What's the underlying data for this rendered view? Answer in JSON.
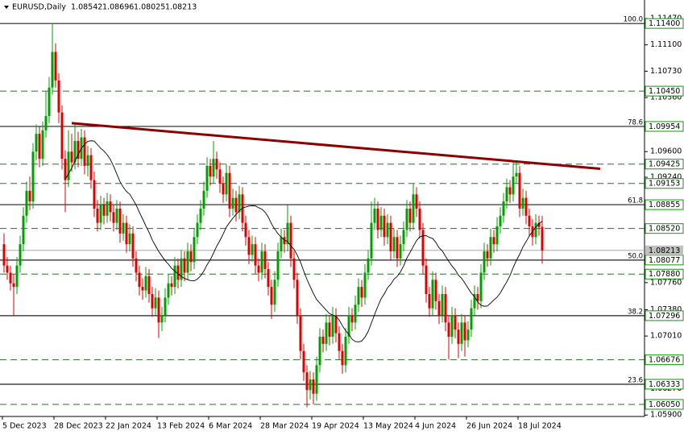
{
  "chart_data": {
    "type": "candlestick",
    "symbol_label": "EURUSD,Daily",
    "up_color": "#00a000",
    "down_color": "#e00000",
    "ylim": [
      1.0588,
      1.1173
    ],
    "yticks": [
      {
        "value": 1.1147,
        "label": "1.11470"
      },
      {
        "value": 1.111,
        "label": "1.11100"
      },
      {
        "value": 1.1073,
        "label": "1.10730"
      },
      {
        "value": 1.1036,
        "label": "1.10360"
      },
      {
        "value": 1.096,
        "label": "1.09600"
      },
      {
        "value": 1.0924,
        "label": "1.09240"
      },
      {
        "value": 1.0776,
        "label": "1.07760"
      },
      {
        "value": 1.0738,
        "label": "1.07380"
      },
      {
        "value": 1.0701,
        "label": "1.07010"
      },
      {
        "value": 1.0627,
        "label": "1.06270"
      },
      {
        "value": 1.059,
        "label": "1.05900"
      }
    ],
    "xlabels": [
      {
        "index": 0,
        "label": "5 Dec 2023"
      },
      {
        "index": 16,
        "label": "28 Dec 2023"
      },
      {
        "index": 32,
        "label": "22 Jan 2024"
      },
      {
        "index": 48,
        "label": "13 Feb 2024"
      },
      {
        "index": 64,
        "label": "6 Mar 2024"
      },
      {
        "index": 80,
        "label": "28 Mar 2024"
      },
      {
        "index": 96,
        "label": "19 Apr 2024"
      },
      {
        "index": 112,
        "label": "13 May 2024"
      },
      {
        "index": 128,
        "label": "4 Jun 2024"
      },
      {
        "index": 144,
        "label": "26 Jun 2024"
      },
      {
        "index": 160,
        "label": "18 Jul 2024"
      }
    ],
    "levels": [
      {
        "value": 1.114,
        "label": "1.11400",
        "fib": "100.0",
        "style": "solid"
      },
      {
        "value": 1.1045,
        "label": "1.10450",
        "style": "dashed"
      },
      {
        "value": 1.09954,
        "label": "1.09954",
        "fib": "78.6",
        "style": "solid"
      },
      {
        "value": 1.09425,
        "label": "1.09425",
        "style": "dashed"
      },
      {
        "value": 1.09153,
        "label": "1.09153",
        "style": "dashed"
      },
      {
        "value": 1.08855,
        "label": "1.08855",
        "fib": "61.8",
        "style": "solid"
      },
      {
        "value": 1.0852,
        "label": "1.08520",
        "style": "dashed"
      },
      {
        "value": 1.08077,
        "label": "1.08077",
        "fib": "50.0",
        "style": "solid"
      },
      {
        "value": 1.0788,
        "label": "1.07880",
        "style": "dashed"
      },
      {
        "value": 1.07296,
        "label": "1.07296",
        "fib": "38.2",
        "style": "solid"
      },
      {
        "value": 1.06676,
        "label": "1.06676",
        "style": "dashed"
      },
      {
        "value": 1.06333,
        "label": "1.06333",
        "fib": "23.6",
        "style": "solid"
      },
      {
        "value": 1.0605,
        "label": "1.06050",
        "style": "dashed"
      }
    ],
    "trendline": {
      "color": "#8b0000",
      "start": {
        "index": 21,
        "price": 1.1
      },
      "end": {
        "index": 185,
        "price": 1.0936
      }
    },
    "candles": [
      [
        1.083,
        1.0845,
        1.079,
        1.08
      ],
      [
        1.08,
        1.0812,
        1.078,
        1.079
      ],
      [
        1.079,
        1.08,
        1.0765,
        1.0775
      ],
      [
        1.0775,
        1.0788,
        1.073,
        1.077
      ],
      [
        1.077,
        1.0812,
        1.076,
        1.08
      ],
      [
        1.08,
        1.0842,
        1.079,
        1.083
      ],
      [
        1.083,
        1.0882,
        1.082,
        1.087
      ],
      [
        1.087,
        1.0918,
        1.086,
        1.0905
      ],
      [
        1.0905,
        1.0925,
        1.0878,
        1.089
      ],
      [
        1.089,
        1.0972,
        1.088,
        1.096
      ],
      [
        1.096,
        1.0998,
        1.0948,
        1.0985
      ],
      [
        1.0985,
        1.0995,
        1.0938,
        1.095
      ],
      [
        1.095,
        1.1002,
        1.094,
        1.099
      ],
      [
        1.099,
        1.1045,
        1.098,
        1.101
      ],
      [
        1.101,
        1.1065,
        1.1,
        1.105
      ],
      [
        1.105,
        1.1139,
        1.104,
        1.11
      ],
      [
        1.11,
        1.1112,
        1.105,
        1.106
      ],
      [
        1.106,
        1.107,
        1.1,
        1.1015
      ],
      [
        1.1015,
        1.1025,
        1.0935,
        1.095
      ],
      [
        1.095,
        1.0962,
        1.0875,
        1.092
      ],
      [
        1.092,
        1.099,
        1.091,
        1.096
      ],
      [
        1.096,
        1.0985,
        1.0932,
        1.0945
      ],
      [
        1.0945,
        1.0998,
        1.0935,
        1.0975
      ],
      [
        1.0975,
        1.0988,
        1.0938,
        1.095
      ],
      [
        1.095,
        1.0992,
        1.094,
        1.098
      ],
      [
        1.098,
        1.099,
        1.0928,
        1.094
      ],
      [
        1.094,
        1.0968,
        1.0925,
        1.0955
      ],
      [
        1.0955,
        1.0965,
        1.0908,
        1.092
      ],
      [
        1.092,
        1.0932,
        1.0868,
        1.088
      ],
      [
        1.088,
        1.0892,
        1.0848,
        1.086
      ],
      [
        1.086,
        1.0898,
        1.085,
        1.0885
      ],
      [
        1.0885,
        1.0895,
        1.0858,
        1.087
      ],
      [
        1.087,
        1.0902,
        1.086,
        1.089
      ],
      [
        1.089,
        1.09,
        1.0862,
        1.0875
      ],
      [
        1.0875,
        1.0885,
        1.0848,
        1.086
      ],
      [
        1.086,
        1.0892,
        1.085,
        1.088
      ],
      [
        1.088,
        1.089,
        1.0832,
        1.0845
      ],
      [
        1.0845,
        1.0872,
        1.0835,
        1.086
      ],
      [
        1.086,
        1.087,
        1.0818,
        1.083
      ],
      [
        1.083,
        1.0858,
        1.082,
        1.0845
      ],
      [
        1.0845,
        1.0855,
        1.0798,
        1.081
      ],
      [
        1.081,
        1.082,
        1.0778,
        1.079
      ],
      [
        1.079,
        1.08,
        1.0758,
        1.077
      ],
      [
        1.077,
        1.0782,
        1.0752,
        1.0765
      ],
      [
        1.0765,
        1.0798,
        1.0755,
        1.0785
      ],
      [
        1.0785,
        1.0795,
        1.0748,
        1.076
      ],
      [
        1.076,
        1.077,
        1.0728,
        1.074
      ],
      [
        1.074,
        1.0768,
        1.073,
        1.0755
      ],
      [
        1.0755,
        1.0765,
        1.0698,
        1.072
      ],
      [
        1.072,
        1.0742,
        1.0708,
        1.073
      ],
      [
        1.073,
        1.0768,
        1.072,
        1.0755
      ],
      [
        1.0755,
        1.0788,
        1.0745,
        1.0775
      ],
      [
        1.0775,
        1.0785,
        1.0758,
        1.077
      ],
      [
        1.077,
        1.0812,
        1.076,
        1.08
      ],
      [
        1.08,
        1.081,
        1.0768,
        1.078
      ],
      [
        1.078,
        1.0822,
        1.077,
        1.081
      ],
      [
        1.081,
        1.082,
        1.0778,
        1.079
      ],
      [
        1.079,
        1.0832,
        1.078,
        1.082
      ],
      [
        1.082,
        1.083,
        1.0792,
        1.0805
      ],
      [
        1.0805,
        1.0852,
        1.0795,
        1.084
      ],
      [
        1.084,
        1.0872,
        1.083,
        1.086
      ],
      [
        1.086,
        1.0892,
        1.085,
        1.088
      ],
      [
        1.088,
        1.0918,
        1.087,
        1.0905
      ],
      [
        1.0905,
        1.0952,
        1.0895,
        1.094
      ],
      [
        1.094,
        1.095,
        1.0912,
        1.0925
      ],
      [
        1.0925,
        1.0975,
        1.0915,
        1.095
      ],
      [
        1.095,
        1.096,
        1.0922,
        1.0935
      ],
      [
        1.0935,
        1.0945,
        1.0902,
        1.0915
      ],
      [
        1.0915,
        1.0925,
        1.0888,
        1.09
      ],
      [
        1.09,
        1.0942,
        1.089,
        1.093
      ],
      [
        1.093,
        1.094,
        1.0868,
        1.088
      ],
      [
        1.088,
        1.0908,
        1.087,
        1.0895
      ],
      [
        1.0895,
        1.0905,
        1.0862,
        1.0875
      ],
      [
        1.0875,
        1.0912,
        1.0865,
        1.09
      ],
      [
        1.09,
        1.091,
        1.0848,
        1.086
      ],
      [
        1.086,
        1.087,
        1.0828,
        1.084
      ],
      [
        1.084,
        1.085,
        1.0802,
        1.0815
      ],
      [
        1.0815,
        1.0842,
        1.0805,
        1.083
      ],
      [
        1.083,
        1.084,
        1.0788,
        1.08
      ],
      [
        1.08,
        1.081,
        1.0778,
        1.079
      ],
      [
        1.079,
        1.0832,
        1.078,
        1.082
      ],
      [
        1.082,
        1.083,
        1.0782,
        1.0795
      ],
      [
        1.0795,
        1.0805,
        1.0758,
        1.077
      ],
      [
        1.077,
        1.078,
        1.0725,
        1.0745
      ],
      [
        1.0745,
        1.0792,
        1.0735,
        1.078
      ],
      [
        1.078,
        1.0832,
        1.077,
        1.082
      ],
      [
        1.082,
        1.0852,
        1.081,
        1.084
      ],
      [
        1.084,
        1.085,
        1.0818,
        1.083
      ],
      [
        1.083,
        1.0885,
        1.082,
        1.086
      ],
      [
        1.086,
        1.087,
        1.0798,
        1.081
      ],
      [
        1.081,
        1.082,
        1.0768,
        1.078
      ],
      [
        1.078,
        1.079,
        1.0718,
        1.073
      ],
      [
        1.073,
        1.074,
        1.0668,
        1.068
      ],
      [
        1.068,
        1.069,
        1.0638,
        1.065
      ],
      [
        1.065,
        1.066,
        1.0601,
        1.0625
      ],
      [
        1.0625,
        1.0652,
        1.0612,
        1.064
      ],
      [
        1.064,
        1.065,
        1.0605,
        1.062
      ],
      [
        1.062,
        1.0672,
        1.061,
        1.066
      ],
      [
        1.066,
        1.0712,
        1.065,
        1.07
      ],
      [
        1.07,
        1.071,
        1.0678,
        1.069
      ],
      [
        1.069,
        1.0732,
        1.068,
        1.072
      ],
      [
        1.072,
        1.073,
        1.0688,
        1.07
      ],
      [
        1.07,
        1.0742,
        1.069,
        1.073
      ],
      [
        1.073,
        1.074,
        1.0692,
        1.0705
      ],
      [
        1.0705,
        1.0715,
        1.0668,
        1.068
      ],
      [
        1.068,
        1.069,
        1.0648,
        1.066
      ],
      [
        1.066,
        1.0712,
        1.065,
        1.07
      ],
      [
        1.07,
        1.0742,
        1.069,
        1.073
      ],
      [
        1.073,
        1.074,
        1.0708,
        1.072
      ],
      [
        1.072,
        1.0758,
        1.071,
        1.0745
      ],
      [
        1.0745,
        1.0782,
        1.0735,
        1.077
      ],
      [
        1.077,
        1.078,
        1.0742,
        1.0755
      ],
      [
        1.0755,
        1.0802,
        1.0745,
        1.079
      ],
      [
        1.079,
        1.0822,
        1.078,
        1.081
      ],
      [
        1.081,
        1.089,
        1.08,
        1.086
      ],
      [
        1.086,
        1.0895,
        1.085,
        1.088
      ],
      [
        1.088,
        1.089,
        1.0838,
        1.085
      ],
      [
        1.085,
        1.0882,
        1.084,
        1.087
      ],
      [
        1.087,
        1.088,
        1.0828,
        1.084
      ],
      [
        1.084,
        1.0872,
        1.083,
        1.086
      ],
      [
        1.086,
        1.087,
        1.0808,
        1.082
      ],
      [
        1.082,
        1.0852,
        1.081,
        1.084
      ],
      [
        1.084,
        1.085,
        1.0798,
        1.081
      ],
      [
        1.081,
        1.0842,
        1.08,
        1.083
      ],
      [
        1.083,
        1.0862,
        1.082,
        1.085
      ],
      [
        1.085,
        1.0892,
        1.084,
        1.088
      ],
      [
        1.088,
        1.089,
        1.0848,
        1.086
      ],
      [
        1.086,
        1.0915,
        1.085,
        1.09
      ],
      [
        1.09,
        1.091,
        1.0868,
        1.088
      ],
      [
        1.088,
        1.089,
        1.0838,
        1.085
      ],
      [
        1.085,
        1.086,
        1.0788,
        1.08
      ],
      [
        1.08,
        1.081,
        1.0748,
        1.076
      ],
      [
        1.076,
        1.077,
        1.0728,
        1.074
      ],
      [
        1.074,
        1.0792,
        1.073,
        1.078
      ],
      [
        1.078,
        1.079,
        1.0738,
        1.075
      ],
      [
        1.075,
        1.076,
        1.0718,
        1.073
      ],
      [
        1.073,
        1.0772,
        1.072,
        1.076
      ],
      [
        1.076,
        1.077,
        1.0708,
        1.072
      ],
      [
        1.072,
        1.073,
        1.0668,
        1.07
      ],
      [
        1.07,
        1.0742,
        1.069,
        1.073
      ],
      [
        1.073,
        1.074,
        1.0698,
        1.071
      ],
      [
        1.071,
        1.072,
        1.067,
        1.069
      ],
      [
        1.069,
        1.0732,
        1.068,
        1.072
      ],
      [
        1.072,
        1.073,
        1.0672,
        1.0695
      ],
      [
        1.0695,
        1.0722,
        1.0685,
        1.071
      ],
      [
        1.071,
        1.0752,
        1.07,
        1.074
      ],
      [
        1.074,
        1.0772,
        1.073,
        1.076
      ],
      [
        1.076,
        1.077,
        1.0738,
        1.075
      ],
      [
        1.075,
        1.0802,
        1.074,
        1.079
      ],
      [
        1.079,
        1.0832,
        1.078,
        1.082
      ],
      [
        1.082,
        1.083,
        1.0798,
        1.081
      ],
      [
        1.081,
        1.0852,
        1.08,
        1.084
      ],
      [
        1.084,
        1.085,
        1.0818,
        1.083
      ],
      [
        1.083,
        1.0868,
        1.082,
        1.0855
      ],
      [
        1.0855,
        1.0882,
        1.0845,
        1.087
      ],
      [
        1.087,
        1.0902,
        1.086,
        1.089
      ],
      [
        1.089,
        1.0922,
        1.088,
        1.091
      ],
      [
        1.091,
        1.092,
        1.0888,
        1.09
      ],
      [
        1.09,
        1.0945,
        1.089,
        1.0925
      ],
      [
        1.0925,
        1.0948,
        1.0915,
        1.093
      ],
      [
        1.093,
        1.094,
        1.0868,
        1.088
      ],
      [
        1.088,
        1.0908,
        1.087,
        1.0895
      ],
      [
        1.0895,
        1.0905,
        1.0858,
        1.087
      ],
      [
        1.087,
        1.088,
        1.0842,
        1.0855
      ],
      [
        1.0855,
        1.0865,
        1.0828,
        1.084
      ],
      [
        1.084,
        1.0872,
        1.083,
        1.086
      ],
      [
        1.086,
        1.087,
        1.0842,
        1.08542
      ],
      [
        1.08542,
        1.08696,
        1.08025,
        1.08213
      ]
    ]
  }
}
